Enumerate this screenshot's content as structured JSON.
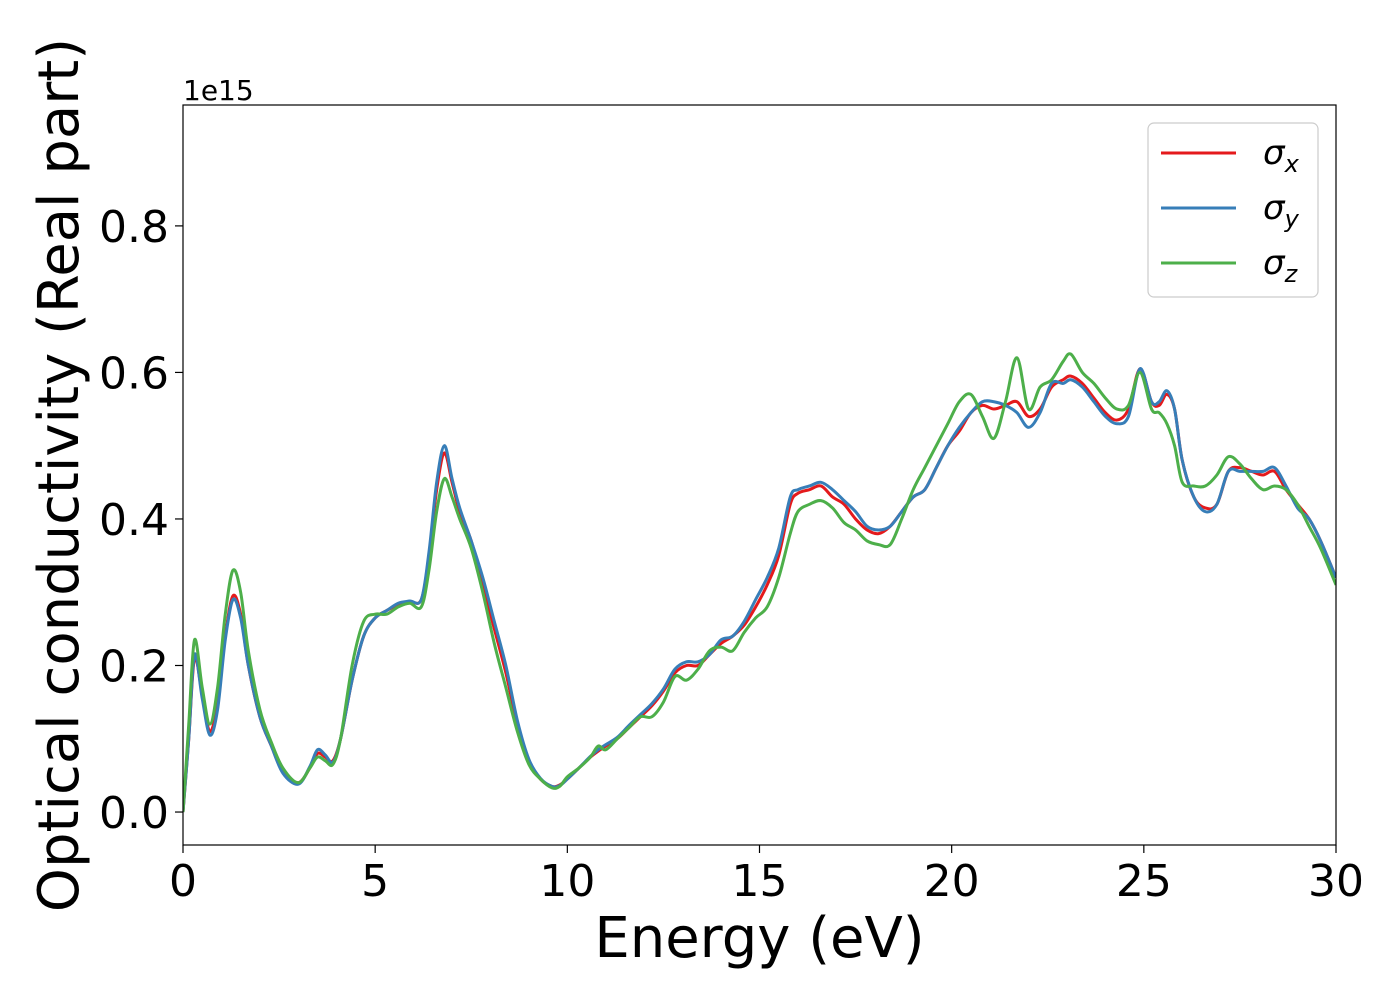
{
  "chart_data": {
    "type": "line",
    "title": "",
    "xlabel": "Energy (eV)",
    "ylabel": "Optical conductivity (Real part)",
    "y_offset_text": "1e15",
    "xlim": [
      0,
      30
    ],
    "ylim": [
      -0.045,
      0.965
    ],
    "xticks": [
      0,
      5,
      10,
      15,
      20,
      25,
      30
    ],
    "xtick_labels": [
      "0",
      "5",
      "10",
      "15",
      "20",
      "25",
      "30"
    ],
    "yticks": [
      0.0,
      0.2,
      0.4,
      0.6,
      0.8
    ],
    "ytick_labels": [
      "0.0",
      "0.2",
      "0.4",
      "0.6",
      "0.8"
    ],
    "grid": false,
    "legend_position": "top-right",
    "series": [
      {
        "name": "σx",
        "symbol": "σ",
        "subscript": "x",
        "color": "#e41a1c",
        "x": [
          0,
          0.15,
          0.3,
          0.5,
          0.7,
          0.9,
          1.1,
          1.3,
          1.5,
          1.7,
          2.0,
          2.3,
          2.6,
          3.0,
          3.3,
          3.5,
          3.7,
          3.9,
          4.1,
          4.4,
          4.7,
          5.0,
          5.3,
          5.6,
          5.9,
          6.2,
          6.4,
          6.6,
          6.8,
          7.0,
          7.2,
          7.5,
          7.8,
          8.1,
          8.4,
          8.7,
          9.0,
          9.3,
          9.6,
          9.8,
          10.0,
          10.3,
          10.6,
          10.8,
          11.0,
          11.3,
          11.6,
          11.9,
          12.2,
          12.5,
          12.8,
          13.1,
          13.4,
          13.7,
          14.0,
          14.3,
          14.6,
          14.9,
          15.2,
          15.5,
          15.8,
          16.0,
          16.3,
          16.6,
          16.9,
          17.2,
          17.5,
          17.8,
          18.1,
          18.4,
          18.7,
          19.0,
          19.3,
          19.6,
          19.9,
          20.2,
          20.5,
          20.8,
          21.1,
          21.4,
          21.7,
          22.0,
          22.3,
          22.6,
          22.9,
          23.1,
          23.4,
          23.7,
          24.0,
          24.3,
          24.6,
          24.9,
          25.2,
          25.4,
          25.6,
          25.8,
          26.0,
          26.3,
          26.6,
          26.9,
          27.2,
          27.5,
          27.8,
          28.1,
          28.4,
          28.7,
          29.0,
          29.3,
          29.6,
          30.0
        ],
        "y": [
          0.0,
          0.1,
          0.21,
          0.16,
          0.11,
          0.15,
          0.24,
          0.295,
          0.27,
          0.2,
          0.13,
          0.09,
          0.055,
          0.04,
          0.06,
          0.08,
          0.075,
          0.07,
          0.1,
          0.18,
          0.24,
          0.265,
          0.275,
          0.283,
          0.287,
          0.29,
          0.35,
          0.44,
          0.49,
          0.45,
          0.41,
          0.37,
          0.31,
          0.25,
          0.19,
          0.12,
          0.07,
          0.045,
          0.035,
          0.037,
          0.045,
          0.06,
          0.075,
          0.083,
          0.09,
          0.1,
          0.115,
          0.13,
          0.145,
          0.165,
          0.19,
          0.2,
          0.2,
          0.215,
          0.23,
          0.24,
          0.255,
          0.28,
          0.31,
          0.35,
          0.42,
          0.435,
          0.44,
          0.445,
          0.43,
          0.42,
          0.4,
          0.385,
          0.38,
          0.39,
          0.41,
          0.43,
          0.44,
          0.47,
          0.5,
          0.52,
          0.545,
          0.555,
          0.55,
          0.555,
          0.56,
          0.54,
          0.55,
          0.58,
          0.59,
          0.595,
          0.585,
          0.565,
          0.545,
          0.535,
          0.55,
          0.605,
          0.56,
          0.555,
          0.57,
          0.55,
          0.48,
          0.43,
          0.415,
          0.42,
          0.465,
          0.47,
          0.465,
          0.46,
          0.465,
          0.44,
          0.42,
          0.4,
          0.37,
          0.32
        ]
      },
      {
        "name": "σy",
        "symbol": "σ",
        "subscript": "y",
        "color": "#377eb8",
        "x": [
          0,
          0.15,
          0.3,
          0.5,
          0.7,
          0.9,
          1.1,
          1.3,
          1.5,
          1.7,
          2.0,
          2.3,
          2.6,
          3.0,
          3.3,
          3.5,
          3.7,
          3.9,
          4.1,
          4.4,
          4.7,
          5.0,
          5.3,
          5.6,
          5.9,
          6.2,
          6.4,
          6.6,
          6.8,
          7.0,
          7.2,
          7.5,
          7.8,
          8.1,
          8.4,
          8.7,
          9.0,
          9.3,
          9.6,
          9.8,
          10.0,
          10.3,
          10.6,
          10.8,
          11.0,
          11.3,
          11.6,
          11.9,
          12.2,
          12.5,
          12.8,
          13.1,
          13.4,
          13.7,
          14.0,
          14.3,
          14.6,
          14.9,
          15.2,
          15.5,
          15.8,
          16.0,
          16.3,
          16.6,
          16.9,
          17.2,
          17.5,
          17.8,
          18.1,
          18.4,
          18.7,
          19.0,
          19.3,
          19.6,
          19.9,
          20.2,
          20.5,
          20.8,
          21.1,
          21.4,
          21.7,
          22.0,
          22.3,
          22.6,
          22.9,
          23.1,
          23.4,
          23.7,
          24.0,
          24.3,
          24.6,
          24.9,
          25.2,
          25.4,
          25.6,
          25.8,
          26.0,
          26.3,
          26.6,
          26.9,
          27.2,
          27.5,
          27.8,
          28.1,
          28.4,
          28.7,
          29.0,
          29.3,
          29.6,
          30.0
        ],
        "y": [
          0.0,
          0.1,
          0.215,
          0.155,
          0.105,
          0.14,
          0.235,
          0.29,
          0.265,
          0.2,
          0.13,
          0.09,
          0.053,
          0.038,
          0.062,
          0.085,
          0.078,
          0.068,
          0.1,
          0.18,
          0.24,
          0.265,
          0.275,
          0.285,
          0.288,
          0.29,
          0.355,
          0.45,
          0.5,
          0.455,
          0.415,
          0.37,
          0.32,
          0.26,
          0.2,
          0.125,
          0.072,
          0.046,
          0.035,
          0.036,
          0.045,
          0.06,
          0.076,
          0.085,
          0.092,
          0.102,
          0.118,
          0.133,
          0.148,
          0.168,
          0.195,
          0.205,
          0.205,
          0.215,
          0.235,
          0.24,
          0.26,
          0.29,
          0.32,
          0.36,
          0.43,
          0.44,
          0.445,
          0.45,
          0.44,
          0.425,
          0.41,
          0.39,
          0.385,
          0.39,
          0.41,
          0.43,
          0.44,
          0.47,
          0.5,
          0.525,
          0.545,
          0.56,
          0.56,
          0.555,
          0.545,
          0.525,
          0.545,
          0.585,
          0.585,
          0.59,
          0.58,
          0.56,
          0.54,
          0.53,
          0.54,
          0.605,
          0.56,
          0.56,
          0.575,
          0.55,
          0.48,
          0.43,
          0.41,
          0.42,
          0.465,
          0.465,
          0.465,
          0.465,
          0.47,
          0.445,
          0.415,
          0.4,
          0.37,
          0.32
        ]
      },
      {
        "name": "σz",
        "symbol": "σ",
        "subscript": "z",
        "color": "#4daf4a",
        "x": [
          0,
          0.15,
          0.3,
          0.5,
          0.7,
          0.9,
          1.1,
          1.3,
          1.5,
          1.7,
          2.0,
          2.3,
          2.6,
          3.0,
          3.3,
          3.5,
          3.7,
          3.9,
          4.1,
          4.4,
          4.7,
          5.0,
          5.3,
          5.6,
          5.9,
          6.2,
          6.4,
          6.6,
          6.8,
          7.0,
          7.2,
          7.5,
          7.8,
          8.1,
          8.4,
          8.7,
          9.0,
          9.3,
          9.6,
          9.8,
          10.0,
          10.3,
          10.6,
          10.8,
          11.0,
          11.3,
          11.6,
          11.9,
          12.2,
          12.5,
          12.8,
          13.1,
          13.4,
          13.7,
          14.0,
          14.3,
          14.6,
          14.9,
          15.2,
          15.5,
          15.8,
          16.0,
          16.3,
          16.6,
          16.9,
          17.2,
          17.5,
          17.8,
          18.1,
          18.4,
          18.7,
          19.0,
          19.3,
          19.6,
          19.9,
          20.2,
          20.5,
          20.8,
          21.1,
          21.4,
          21.7,
          22.0,
          22.3,
          22.6,
          22.9,
          23.1,
          23.4,
          23.7,
          24.0,
          24.3,
          24.6,
          24.9,
          25.2,
          25.4,
          25.6,
          25.8,
          26.0,
          26.3,
          26.6,
          26.9,
          27.2,
          27.5,
          27.8,
          28.1,
          28.4,
          28.7,
          29.0,
          29.3,
          29.6,
          30.0
        ],
        "y": [
          0.0,
          0.12,
          0.235,
          0.17,
          0.12,
          0.17,
          0.27,
          0.33,
          0.3,
          0.22,
          0.14,
          0.095,
          0.06,
          0.04,
          0.06,
          0.075,
          0.07,
          0.065,
          0.1,
          0.2,
          0.26,
          0.27,
          0.27,
          0.28,
          0.285,
          0.28,
          0.33,
          0.41,
          0.455,
          0.43,
          0.4,
          0.36,
          0.3,
          0.23,
          0.17,
          0.11,
          0.065,
          0.045,
          0.033,
          0.035,
          0.048,
          0.06,
          0.075,
          0.09,
          0.085,
          0.1,
          0.115,
          0.13,
          0.13,
          0.15,
          0.185,
          0.18,
          0.195,
          0.22,
          0.225,
          0.22,
          0.245,
          0.265,
          0.28,
          0.32,
          0.38,
          0.41,
          0.42,
          0.425,
          0.415,
          0.395,
          0.385,
          0.37,
          0.365,
          0.365,
          0.4,
          0.44,
          0.47,
          0.5,
          0.53,
          0.56,
          0.57,
          0.54,
          0.51,
          0.56,
          0.62,
          0.55,
          0.58,
          0.59,
          0.615,
          0.625,
          0.6,
          0.585,
          0.565,
          0.55,
          0.555,
          0.6,
          0.55,
          0.545,
          0.53,
          0.5,
          0.45,
          0.445,
          0.445,
          0.46,
          0.485,
          0.475,
          0.455,
          0.44,
          0.445,
          0.44,
          0.42,
          0.39,
          0.36,
          0.31
        ]
      }
    ]
  }
}
